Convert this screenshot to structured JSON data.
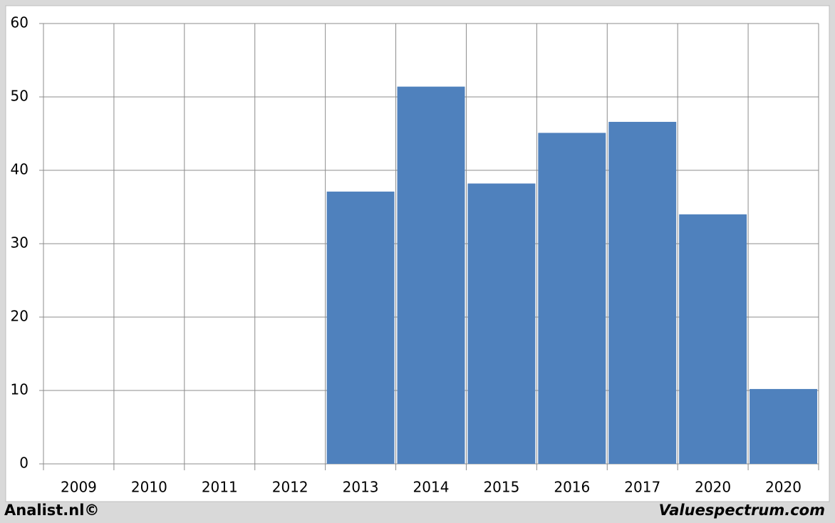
{
  "chart_data": {
    "type": "bar",
    "categories": [
      "2009",
      "2010",
      "2011",
      "2012",
      "2013",
      "2014",
      "2015",
      "2016",
      "2017",
      "2020",
      "2020"
    ],
    "values": [
      null,
      null,
      null,
      null,
      37.1,
      51.4,
      38.2,
      45.1,
      46.6,
      34.0,
      10.2
    ],
    "color": "#4f81bd",
    "ylim": [
      0,
      60
    ],
    "yticks": [
      0,
      10,
      20,
      30,
      40,
      50,
      60
    ],
    "grid": true,
    "annotations": [
      "Analist.nl©",
      "Valuespectrum.com"
    ]
  }
}
